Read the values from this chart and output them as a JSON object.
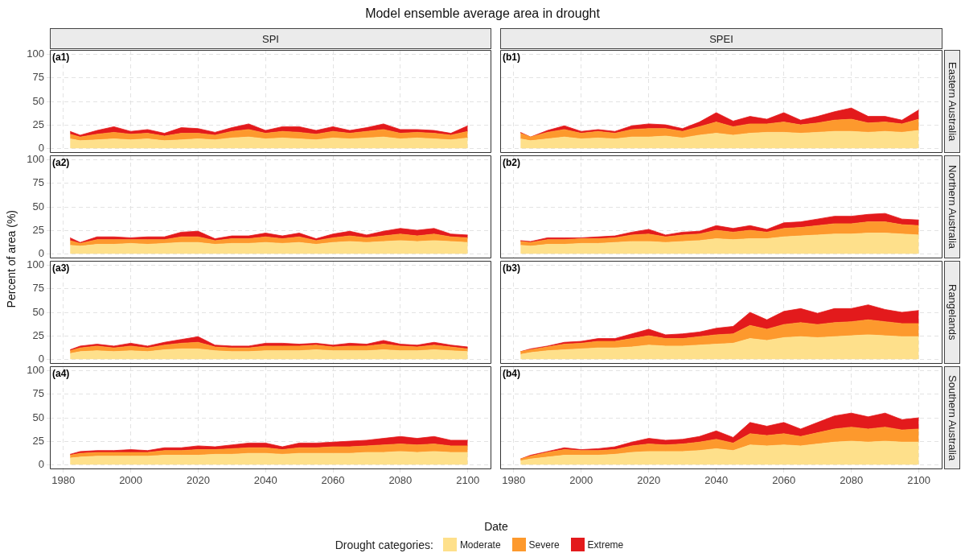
{
  "chart_data": [
    {
      "type": "area",
      "title": "Model ensemble average area in drought",
      "subtitle": "SPI",
      "ylabel": "Percent of area (%)",
      "xlabel": "Date",
      "legend_title": "Drought categories:",
      "legend": "bottom",
      "annotations": [
        "(a1)"
      ],
      "stacked": true,
      "grid": true,
      "tick_labels": "y",
      "xlim": [
        1976,
        2107
      ],
      "xticks": [
        1980,
        2000,
        2020,
        2040,
        2060,
        2080,
        2100
      ],
      "ylim": [
        -5,
        105
      ],
      "yticks": [
        0,
        25,
        50,
        75,
        100
      ],
      "x": [
        1982,
        1985,
        1990,
        1995,
        2000,
        2005,
        2010,
        2015,
        2020,
        2025,
        2030,
        2035,
        2040,
        2045,
        2050,
        2055,
        2060,
        2065,
        2070,
        2075,
        2080,
        2085,
        2090,
        2095,
        2100
      ],
      "series": [
        {
          "name": "Moderate",
          "color": "#fee08b",
          "values": [
            10,
            8,
            9,
            10,
            9,
            10,
            8,
            9,
            10,
            9,
            11,
            12,
            10,
            11,
            10,
            9,
            11,
            10,
            11,
            12,
            10,
            11,
            10,
            9,
            11
          ]
        },
        {
          "name": "Severe",
          "color": "#fd992d",
          "values": [
            5,
            4,
            6,
            7,
            6,
            6,
            5,
            7,
            6,
            5,
            7,
            8,
            6,
            7,
            7,
            6,
            7,
            6,
            7,
            8,
            6,
            6,
            6,
            5,
            7
          ]
        },
        {
          "name": "Extreme",
          "color": "#e31a1c",
          "values": [
            3,
            2,
            4,
            6,
            3,
            4,
            3,
            6,
            5,
            3,
            4,
            6,
            3,
            5,
            6,
            4,
            5,
            3,
            4,
            6,
            4,
            3,
            3,
            2,
            6
          ]
        }
      ]
    },
    {
      "type": "area",
      "subtitle": "SPEI",
      "y2label": "Eastern Australia",
      "annotations": [
        "(b1)"
      ],
      "stacked": true,
      "grid": true,
      "tick_labels": false,
      "xlim": [
        1976,
        2107
      ],
      "xticks": [
        1980,
        2000,
        2020,
        2040,
        2060,
        2080,
        2100
      ],
      "ylim": [
        -5,
        105
      ],
      "yticks": [
        0,
        25,
        50,
        75,
        100
      ],
      "x": [
        1982,
        1985,
        1990,
        1995,
        2000,
        2005,
        2010,
        2015,
        2020,
        2025,
        2030,
        2035,
        2040,
        2045,
        2050,
        2055,
        2060,
        2065,
        2070,
        2075,
        2080,
        2085,
        2090,
        2095,
        2100
      ],
      "series": [
        {
          "name": "Moderate",
          "color": "#fee08b",
          "values": [
            10,
            8,
            10,
            12,
            10,
            11,
            10,
            12,
            12,
            13,
            11,
            14,
            16,
            14,
            16,
            17,
            17,
            16,
            17,
            18,
            18,
            17,
            18,
            17,
            19
          ]
        },
        {
          "name": "Severe",
          "color": "#fd992d",
          "values": [
            6,
            4,
            7,
            8,
            6,
            7,
            6,
            8,
            9,
            8,
            7,
            9,
            12,
            9,
            10,
            9,
            11,
            9,
            10,
            12,
            13,
            10,
            10,
            9,
            12
          ]
        },
        {
          "name": "Extreme",
          "color": "#e31a1c",
          "values": [
            1,
            0,
            2,
            4,
            2,
            2,
            2,
            4,
            5,
            4,
            3,
            5,
            10,
            6,
            8,
            5,
            10,
            5,
            7,
            9,
            12,
            7,
            6,
            4,
            10
          ]
        }
      ]
    },
    {
      "type": "area",
      "annotations": [
        "(a2)"
      ],
      "stacked": true,
      "grid": true,
      "tick_labels": "y",
      "xlim": [
        1976,
        2107
      ],
      "xticks": [
        1980,
        2000,
        2020,
        2040,
        2060,
        2080,
        2100
      ],
      "ylim": [
        -5,
        105
      ],
      "yticks": [
        0,
        25,
        50,
        75,
        100
      ],
      "x": [
        1982,
        1985,
        1990,
        1995,
        2000,
        2005,
        2010,
        2015,
        2020,
        2025,
        2030,
        2035,
        2040,
        2045,
        2050,
        2055,
        2060,
        2065,
        2070,
        2075,
        2080,
        2085,
        2090,
        2095,
        2100
      ],
      "series": [
        {
          "name": "Moderate",
          "color": "#fee08b",
          "values": [
            9,
            8,
            10,
            10,
            11,
            10,
            11,
            12,
            12,
            10,
            11,
            11,
            12,
            11,
            12,
            10,
            12,
            13,
            12,
            13,
            14,
            13,
            14,
            13,
            12
          ]
        },
        {
          "name": "Severe",
          "color": "#fd992d",
          "values": [
            5,
            3,
            5,
            5,
            4,
            5,
            4,
            6,
            6,
            4,
            5,
            5,
            6,
            5,
            6,
            4,
            5,
            6,
            5,
            6,
            7,
            6,
            7,
            5,
            5
          ]
        },
        {
          "name": "Extreme",
          "color": "#e31a1c",
          "values": [
            3,
            1,
            3,
            3,
            2,
            3,
            3,
            5,
            6,
            2,
            3,
            3,
            4,
            3,
            4,
            2,
            4,
            5,
            3,
            5,
            6,
            6,
            6,
            3,
            3
          ]
        }
      ]
    },
    {
      "type": "area",
      "y2label": "Northern Australia",
      "annotations": [
        "(b2)"
      ],
      "stacked": true,
      "grid": true,
      "tick_labels": false,
      "xlim": [
        1976,
        2107
      ],
      "xticks": [
        1980,
        2000,
        2020,
        2040,
        2060,
        2080,
        2100
      ],
      "ylim": [
        -5,
        105
      ],
      "yticks": [
        0,
        25,
        50,
        75,
        100
      ],
      "x": [
        1982,
        1985,
        1990,
        1995,
        2000,
        2005,
        2010,
        2015,
        2020,
        2025,
        2030,
        2035,
        2040,
        2045,
        2050,
        2055,
        2060,
        2065,
        2070,
        2075,
        2080,
        2085,
        2090,
        2095,
        2100
      ],
      "series": [
        {
          "name": "Moderate",
          "color": "#fee08b",
          "values": [
            9,
            8,
            10,
            10,
            11,
            11,
            12,
            13,
            13,
            12,
            13,
            14,
            16,
            15,
            16,
            16,
            18,
            19,
            20,
            21,
            21,
            22,
            22,
            21,
            20
          ]
        },
        {
          "name": "Severe",
          "color": "#fd992d",
          "values": [
            4,
            4,
            5,
            5,
            5,
            5,
            5,
            7,
            8,
            6,
            7,
            7,
            9,
            8,
            9,
            7,
            9,
            9,
            10,
            11,
            11,
            12,
            12,
            10,
            10
          ]
        },
        {
          "name": "Extreme",
          "color": "#e31a1c",
          "values": [
            1,
            1,
            2,
            2,
            1,
            2,
            2,
            3,
            5,
            2,
            3,
            3,
            5,
            4,
            5,
            3,
            6,
            6,
            7,
            8,
            8,
            8,
            9,
            6,
            6
          ]
        }
      ]
    },
    {
      "type": "area",
      "annotations": [
        "(a3)"
      ],
      "stacked": true,
      "grid": true,
      "tick_labels": "y",
      "xlim": [
        1976,
        2107
      ],
      "xticks": [
        1980,
        2000,
        2020,
        2040,
        2060,
        2080,
        2100
      ],
      "ylim": [
        -5,
        105
      ],
      "yticks": [
        0,
        25,
        50,
        75,
        100
      ],
      "x": [
        1982,
        1985,
        1990,
        1995,
        2000,
        2005,
        2010,
        2015,
        2020,
        2025,
        2030,
        2035,
        2040,
        2045,
        2050,
        2055,
        2060,
        2065,
        2070,
        2075,
        2080,
        2085,
        2090,
        2095,
        2100
      ],
      "series": [
        {
          "name": "Moderate",
          "color": "#fee08b",
          "values": [
            6,
            8,
            9,
            8,
            9,
            8,
            10,
            11,
            11,
            9,
            8,
            8,
            9,
            9,
            9,
            10,
            9,
            9,
            9,
            10,
            9,
            9,
            10,
            9,
            8
          ]
        },
        {
          "name": "Severe",
          "color": "#fd992d",
          "values": [
            3,
            4,
            5,
            4,
            5,
            4,
            5,
            6,
            7,
            4,
            4,
            4,
            5,
            5,
            5,
            5,
            4,
            5,
            5,
            6,
            5,
            4,
            5,
            4,
            3
          ]
        },
        {
          "name": "Extreme",
          "color": "#e31a1c",
          "values": [
            1,
            2,
            2,
            2,
            3,
            2,
            3,
            4,
            6,
            2,
            2,
            2,
            3,
            3,
            2,
            2,
            2,
            3,
            2,
            4,
            2,
            2,
            3,
            2,
            2
          ]
        }
      ]
    },
    {
      "type": "area",
      "y2label": "Rangelands",
      "annotations": [
        "(b3)"
      ],
      "stacked": true,
      "grid": true,
      "tick_labels": false,
      "xlim": [
        1976,
        2107
      ],
      "xticks": [
        1980,
        2000,
        2020,
        2040,
        2060,
        2080,
        2100
      ],
      "ylim": [
        -5,
        105
      ],
      "yticks": [
        0,
        25,
        50,
        75,
        100
      ],
      "x": [
        1982,
        1985,
        1990,
        1995,
        2000,
        2005,
        2010,
        2015,
        2020,
        2025,
        2030,
        2035,
        2040,
        2045,
        2050,
        2055,
        2060,
        2065,
        2070,
        2075,
        2080,
        2085,
        2090,
        2095,
        2100
      ],
      "series": [
        {
          "name": "Moderate",
          "color": "#fee08b",
          "values": [
            5,
            7,
            9,
            10,
            11,
            12,
            12,
            13,
            15,
            14,
            14,
            15,
            16,
            17,
            22,
            20,
            23,
            24,
            23,
            24,
            25,
            26,
            25,
            24,
            24
          ]
        },
        {
          "name": "Severe",
          "color": "#fd992d",
          "values": [
            3,
            3,
            4,
            6,
            6,
            7,
            7,
            9,
            10,
            8,
            8,
            9,
            10,
            10,
            14,
            12,
            14,
            15,
            14,
            15,
            15,
            16,
            15,
            14,
            14
          ]
        },
        {
          "name": "Extreme",
          "color": "#e31a1c",
          "values": [
            0,
            1,
            1,
            2,
            2,
            3,
            3,
            5,
            7,
            4,
            5,
            5,
            7,
            8,
            14,
            10,
            14,
            15,
            12,
            15,
            14,
            16,
            13,
            12,
            14
          ]
        }
      ]
    },
    {
      "type": "area",
      "annotations": [
        "(a4)"
      ],
      "stacked": true,
      "grid": true,
      "xlim": [
        1976,
        2107
      ],
      "xticks": [
        1980,
        2000,
        2020,
        2040,
        2060,
        2080,
        2100
      ],
      "ylim": [
        -5,
        105
      ],
      "yticks": [
        0,
        25,
        50,
        75,
        100
      ],
      "x": [
        1982,
        1985,
        1990,
        1995,
        2000,
        2005,
        2010,
        2015,
        2020,
        2025,
        2030,
        2035,
        2040,
        2045,
        2050,
        2055,
        2060,
        2065,
        2070,
        2075,
        2080,
        2085,
        2090,
        2095,
        2100
      ],
      "series": [
        {
          "name": "Moderate",
          "color": "#fee08b",
          "values": [
            7,
            8,
            9,
            9,
            9,
            9,
            10,
            10,
            10,
            11,
            11,
            12,
            12,
            11,
            12,
            12,
            12,
            12,
            13,
            13,
            14,
            13,
            14,
            13,
            13
          ]
        },
        {
          "name": "Severe",
          "color": "#fd992d",
          "values": [
            3,
            4,
            4,
            4,
            4,
            4,
            5,
            5,
            6,
            5,
            6,
            6,
            6,
            5,
            6,
            6,
            7,
            7,
            7,
            8,
            8,
            8,
            8,
            7,
            7
          ]
        },
        {
          "name": "Extreme",
          "color": "#e31a1c",
          "values": [
            1,
            2,
            2,
            2,
            3,
            2,
            3,
            3,
            4,
            3,
            4,
            5,
            5,
            3,
            5,
            5,
            5,
            6,
            6,
            7,
            8,
            7,
            8,
            6,
            6
          ]
        }
      ]
    },
    {
      "type": "area",
      "y2label": "Southern Australia",
      "annotations": [
        "(b4)"
      ],
      "stacked": true,
      "grid": true,
      "tick_labels": "x",
      "xlim": [
        1976,
        2107
      ],
      "xticks": [
        1980,
        2000,
        2020,
        2040,
        2060,
        2080,
        2100
      ],
      "ylim": [
        -5,
        105
      ],
      "yticks": [
        0,
        25,
        50,
        75,
        100
      ],
      "x": [
        1982,
        1985,
        1990,
        1995,
        2000,
        2005,
        2010,
        2015,
        2020,
        2025,
        2030,
        2035,
        2040,
        2045,
        2050,
        2055,
        2060,
        2065,
        2070,
        2075,
        2080,
        2085,
        2090,
        2095,
        2100
      ],
      "series": [
        {
          "name": "Moderate",
          "color": "#fee08b",
          "values": [
            4,
            6,
            8,
            10,
            10,
            10,
            11,
            13,
            14,
            14,
            14,
            15,
            17,
            15,
            21,
            20,
            21,
            20,
            22,
            24,
            25,
            24,
            25,
            24,
            24
          ]
        },
        {
          "name": "Severe",
          "color": "#fd992d",
          "values": [
            2,
            3,
            5,
            6,
            5,
            5,
            5,
            7,
            8,
            7,
            8,
            9,
            10,
            8,
            12,
            11,
            12,
            10,
            12,
            14,
            15,
            14,
            15,
            13,
            14
          ]
        },
        {
          "name": "Extreme",
          "color": "#e31a1c",
          "values": [
            0,
            1,
            1,
            2,
            1,
            2,
            3,
            4,
            6,
            5,
            5,
            6,
            9,
            6,
            12,
            10,
            12,
            8,
            11,
            14,
            15,
            13,
            15,
            11,
            12
          ]
        }
      ]
    }
  ]
}
